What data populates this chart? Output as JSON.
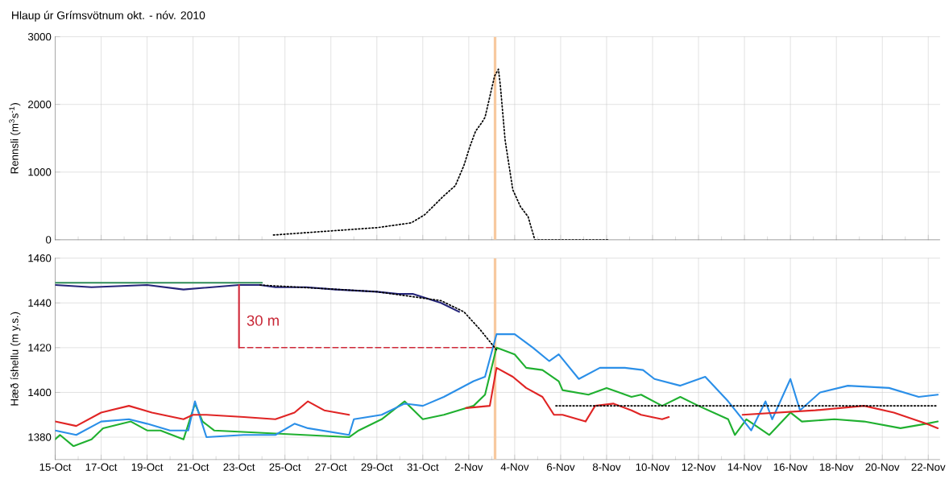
{
  "chart_data": [
    {
      "type": "line",
      "title": "Hlaup úr Grímsvötnum okt. - nóv. 2010",
      "ylabel": "Rennsli (m$^{3}$s$^{-1}$)",
      "xlim": [
        "2010-10-15",
        "2010-11-22T12:00"
      ],
      "ylim": [
        0,
        3000
      ],
      "yticks": [
        0,
        1000,
        2000,
        3000
      ],
      "xticks": [
        {
          "value": "2010-10-15",
          "label": null
        },
        {
          "value": "2010-10-17",
          "label": null
        },
        {
          "value": "2010-10-19",
          "label": null
        },
        {
          "value": "2010-10-21",
          "label": null
        },
        {
          "value": "2010-10-23",
          "label": null
        },
        {
          "value": "2010-10-25",
          "label": null
        },
        {
          "value": "2010-10-27",
          "label": null
        },
        {
          "value": "2010-10-29",
          "label": null
        },
        {
          "value": "2010-10-31",
          "label": null
        },
        {
          "value": "2010-11-02",
          "label": null
        },
        {
          "value": "2010-11-04",
          "label": null
        },
        {
          "value": "2010-11-06",
          "label": null
        },
        {
          "value": "2010-11-08",
          "label": null
        },
        {
          "value": "2010-11-10",
          "label": null
        },
        {
          "value": "2010-11-12",
          "label": null
        },
        {
          "value": "2010-11-14",
          "label": null
        },
        {
          "value": "2010-11-16",
          "label": null
        },
        {
          "value": "2010-11-18",
          "label": null
        },
        {
          "value": "2010-11-20",
          "label": null
        },
        {
          "value": "2010-11-22",
          "label": null
        }
      ],
      "tick_labels": "y",
      "grid": true,
      "marker": "none",
      "bands": [
        {
          "axis": "x",
          "from": "2010-11-03T02:00",
          "to": "2010-11-03T05:00",
          "color": "#f7c9a0"
        }
      ],
      "series": [
        {
          "color": "#000000",
          "line_style": "dotted",
          "x": [
            "2010-10-24T12:00",
            "2010-10-29T01:00",
            "2010-10-30T12:00",
            "2010-10-31T02:00",
            "2010-10-31T22:00",
            "2010-11-01T10:00",
            "2010-11-01T19:00",
            "2010-11-02T01:00",
            "2010-11-02T07:00",
            "2010-11-02T14:00",
            "2010-11-02T17:00",
            "2010-11-03T03:00",
            "2010-11-03T07:00",
            "2010-11-03T09:00",
            "2010-11-03T14:00",
            "2010-11-03T22:00",
            "2010-11-04T06:00",
            "2010-11-04T14:00",
            "2010-11-04T21:00",
            "2010-11-08T02:00"
          ],
          "values": [
            70,
            180,
            250,
            370,
            650,
            800,
            1100,
            1370,
            1600,
            1740,
            1810,
            2420,
            2520,
            2280,
            1470,
            740,
            490,
            340,
            0,
            0
          ]
        }
      ]
    },
    {
      "type": "line",
      "ylabel": "Hæð íshellu (m y.s.)",
      "xlim": [
        "2010-10-15",
        "2010-11-22T12:00"
      ],
      "ylim": [
        1370,
        1460
      ],
      "yticks": [
        1380,
        1400,
        1420,
        1440,
        1460
      ],
      "xticks": [
        {
          "value": "2010-10-15",
          "label": "15-Oct"
        },
        {
          "value": "2010-10-17",
          "label": "17-Oct"
        },
        {
          "value": "2010-10-19",
          "label": "19-Oct"
        },
        {
          "value": "2010-10-21",
          "label": "21-Oct"
        },
        {
          "value": "2010-10-23",
          "label": "23-Oct"
        },
        {
          "value": "2010-10-25",
          "label": "25-Oct"
        },
        {
          "value": "2010-10-27",
          "label": "27-Oct"
        },
        {
          "value": "2010-10-29",
          "label": "29-Oct"
        },
        {
          "value": "2010-10-31",
          "label": "31-Oct"
        },
        {
          "value": "2010-11-02",
          "label": "2-Nov"
        },
        {
          "value": "2010-11-04",
          "label": "4-Nov"
        },
        {
          "value": "2010-11-06",
          "label": "6-Nov"
        },
        {
          "value": "2010-11-08",
          "label": "8-Nov"
        },
        {
          "value": "2010-11-10",
          "label": "10-Nov"
        },
        {
          "value": "2010-11-12",
          "label": "12-Nov"
        },
        {
          "value": "2010-11-14",
          "label": "14-Nov"
        },
        {
          "value": "2010-11-16",
          "label": "16-Nov"
        },
        {
          "value": "2010-11-18",
          "label": "18-Nov"
        },
        {
          "value": "2010-11-20",
          "label": "20-Nov"
        },
        {
          "value": "2010-11-22",
          "label": "22-Nov"
        }
      ],
      "grid": true,
      "marker": "none",
      "bands": [
        {
          "axis": "x",
          "from": "2010-11-03T02:00",
          "to": "2010-11-03T05:00",
          "color": "#f7c9a0"
        }
      ],
      "annotations": [
        "30 m"
      ],
      "series": [
        {
          "color": "#20b030",
          "line_style": "solid",
          "x": [
            "2010-10-15T00:00",
            "2010-10-15T05:00",
            "2010-10-15T19:00",
            "2010-10-16T14:00",
            "2010-10-17T02:00",
            "2010-10-18T07:00",
            "2010-10-19T00:00",
            "2010-10-19T14:00",
            "2010-10-20T14:00",
            "2010-10-21T02:00",
            "2010-10-21T10:00",
            "2010-10-21T22:00",
            "2010-10-27T19:00",
            "2010-10-28T05:00",
            "2010-10-29T05:00",
            "2010-10-30T05:00",
            "2010-10-31T00:00",
            "2010-10-31T22:00",
            "2010-11-02T05:00",
            "2010-11-02T17:00",
            "2010-11-03T05:00",
            "2010-11-04T00:00",
            "2010-11-04T12:00",
            "2010-11-05T05:00",
            "2010-11-05T22:00",
            "2010-11-06T02:00",
            "2010-11-07T05:00",
            "2010-11-08T00:00",
            "2010-11-09T02:00",
            "2010-11-09T12:00",
            "2010-11-10T10:00",
            "2010-11-11T05:00",
            "2010-11-12T00:00",
            "2010-11-13T07:00",
            "2010-11-13T14:00",
            "2010-11-14T02:00",
            "2010-11-15T02:00",
            "2010-11-16T00:00",
            "2010-11-16T12:00",
            "2010-11-17T22:00",
            "2010-11-19T05:00",
            "2010-11-20T19:00",
            "2010-11-21T22:00",
            "2010-11-22T10:00"
          ],
          "values": [
            1379,
            1381,
            1376,
            1379,
            1384,
            1387,
            1383,
            1383,
            1379,
            1395,
            1387,
            1383,
            1380,
            1383,
            1388,
            1396,
            1388,
            1390,
            1394,
            1399,
            1420,
            1417,
            1411,
            1410,
            1405,
            1401,
            1399,
            1402,
            1398,
            1399,
            1394,
            1398,
            1394,
            1388,
            1381,
            1388,
            1381,
            1391,
            1387,
            1388,
            1387,
            1384,
            1386,
            1387
          ]
        },
        {
          "color": "#2b8fe8",
          "line_style": "solid",
          "x": [
            "2010-10-15T00:00",
            "2010-10-15T22:00",
            "2010-10-17T00:00",
            "2010-10-18T05:00",
            "2010-10-19T00:00",
            "2010-10-20T00:00",
            "2010-10-20T19:00",
            "2010-10-21T02:00",
            "2010-10-21T14:00",
            "2010-10-23T05:00",
            "2010-10-24T14:00",
            "2010-10-25T10:00",
            "2010-10-26T00:00",
            "2010-10-27T19:00",
            "2010-10-28T00:00",
            "2010-10-29T05:00",
            "2010-10-30T05:00",
            "2010-10-31T00:00",
            "2010-10-31T22:00",
            "2010-11-02T05:00",
            "2010-11-02T17:00",
            "2010-11-03T05:00",
            "2010-11-04T00:00",
            "2010-11-04T19:00",
            "2010-11-05T12:00",
            "2010-11-05T22:00",
            "2010-11-06T19:00",
            "2010-11-07T17:00",
            "2010-11-08T19:00",
            "2010-11-09T14:00",
            "2010-11-10T02:00",
            "2010-11-11T05:00",
            "2010-11-12T07:00",
            "2010-11-13T07:00",
            "2010-11-13T22:00",
            "2010-11-14T07:00",
            "2010-11-14T22:00",
            "2010-11-15T05:00",
            "2010-11-16T00:00",
            "2010-11-16T10:00",
            "2010-11-17T07:00",
            "2010-11-18T12:00",
            "2010-11-20T07:00",
            "2010-11-21T14:00",
            "2010-11-22T10:00"
          ],
          "values": [
            1383,
            1381,
            1387,
            1388,
            1386,
            1383,
            1383,
            1396,
            1380,
            1381,
            1381,
            1386,
            1384,
            1381,
            1388,
            1390,
            1395,
            1394,
            1398,
            1405,
            1407,
            1426,
            1426,
            1420,
            1414,
            1417,
            1406,
            1411,
            1411,
            1410,
            1406,
            1403,
            1407,
            1396,
            1388,
            1383,
            1396,
            1388,
            1406,
            1392,
            1400,
            1403,
            1402,
            1398,
            1399
          ]
        },
        {
          "color": "#e02525",
          "line_style": "solid",
          "x": [
            "2010-10-15T00:00",
            "2010-10-15T22:00",
            "2010-10-17T00:00",
            "2010-10-18T05:00",
            "2010-10-19T05:00",
            "2010-10-20T14:00",
            "2010-10-21T00:00",
            "2010-10-21T14:00",
            "2010-10-23T05:00",
            "2010-10-24T14:00",
            "2010-10-25T10:00",
            "2010-10-26T00:00",
            "2010-10-26T17:00",
            "2010-10-27T19:00",
            "2010-10-30T00:00",
            "2010-11-01T21:00",
            "2010-11-02T22:00",
            "2010-11-03T05:00",
            "2010-11-03T22:00",
            "2010-11-04T12:00",
            "2010-11-05T05:00",
            "2010-11-05T17:00",
            "2010-11-06T02:00",
            "2010-11-07T02:00",
            "2010-11-07T12:00",
            "2010-11-08T07:00",
            "2010-11-09T02:00",
            "2010-11-09T12:00",
            "2010-11-10T10:00",
            "2010-11-10T17:00",
            "2010-11-12T00:00",
            "2010-11-13T22:00",
            "2010-11-17T02:00",
            "2010-11-19T05:00",
            "2010-11-20T12:00",
            "2010-11-21T22:00",
            "2010-11-22T10:00"
          ],
          "values": [
            1387,
            1385,
            1391,
            1394,
            1391,
            1388,
            1390,
            1390,
            1389,
            1388,
            1391,
            1396,
            1392,
            1390,
            null,
            1393,
            1394,
            1411,
            1407,
            1402,
            1398,
            1390,
            1390,
            1387,
            1394,
            1395,
            1392,
            1390,
            1388,
            1389,
            null,
            1390,
            1392,
            1394,
            1391,
            1386,
            1384
          ]
        },
        {
          "color": "#2e8b57",
          "line_style": "solid",
          "x": [
            "2010-10-15T00:00",
            "2010-10-19T00:00",
            "2010-10-24T00:00"
          ],
          "values": [
            1449,
            1449,
            1449
          ]
        },
        {
          "color": "#25257a",
          "line_style": "solid",
          "x": [
            "2010-10-15T00:00",
            "2010-10-16T14:00",
            "2010-10-19T00:00",
            "2010-10-20T14:00",
            "2010-10-23T00:00",
            "2010-10-23T22:00",
            "2010-10-24T14:00",
            "2010-10-25T22:00",
            "2010-10-27T05:00",
            "2010-10-29T00:00",
            "2010-10-29T22:00",
            "2010-10-30T14:00",
            "2010-10-31T19:00",
            "2010-11-01T14:00"
          ],
          "values": [
            1448,
            1447,
            1448,
            1446,
            1448,
            1448,
            1447,
            1447,
            1446,
            1445,
            1444,
            1444,
            1440,
            1436
          ]
        },
        {
          "color": "#000000",
          "line_style": "dotted",
          "x": [
            "2010-10-23T22:00",
            "2010-10-29T00:00",
            "2010-10-31T19:00",
            "2010-11-01T19:00",
            "2010-11-02T12:00",
            "2010-11-03T05:00",
            "2010-11-04T00:00",
            "2010-11-05T19:00",
            "2010-11-22T10:00"
          ],
          "values": [
            1448,
            1445,
            1441,
            1436,
            1428,
            1419,
            null,
            1394,
            1394
          ]
        },
        {
          "color": "#d02a3a",
          "line_style": "dashed",
          "x": [
            "2010-10-23T00:00",
            "2010-11-03T03:00"
          ],
          "values": [
            1420,
            1420
          ]
        },
        {
          "color": "#d02a3a",
          "line_style": "solid",
          "x": [
            "2010-10-23T00:00",
            "2010-10-23T00:00"
          ],
          "values": [
            1448,
            1420
          ]
        }
      ]
    }
  ]
}
